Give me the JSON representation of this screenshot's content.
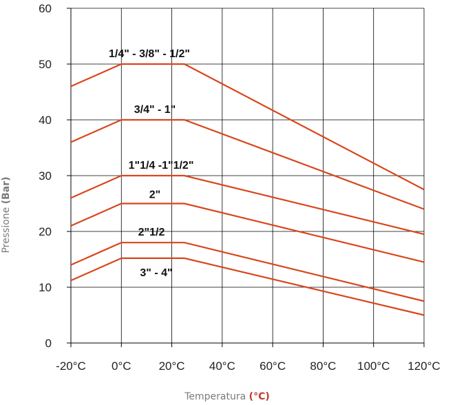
{
  "chart_data": {
    "type": "line",
    "xlabel": "Temperatura",
    "xlabel_unit": "(°C)",
    "ylabel": "Pressione",
    "ylabel_unit": "(Bar)",
    "xlim": [
      -20,
      120
    ],
    "ylim": [
      0,
      60
    ],
    "x_ticks": [
      -20,
      0,
      20,
      40,
      60,
      80,
      100,
      120
    ],
    "x_tick_labels": [
      "-20°C",
      "0°C",
      "20°C",
      "40°C",
      "60°C",
      "80°C",
      "100°C",
      "120°C"
    ],
    "y_ticks": [
      0,
      10,
      20,
      30,
      40,
      50,
      60
    ],
    "y_tick_labels": [
      "0",
      "10",
      "20",
      "30",
      "40",
      "50",
      "60"
    ],
    "grid": true,
    "series": [
      {
        "name": "1/4\" - 3/8\" - 1/2\"",
        "x": [
          -20,
          0,
          25,
          120
        ],
        "values": [
          46,
          50,
          50,
          27.5
        ]
      },
      {
        "name": "3/4\" - 1\"",
        "x": [
          -20,
          0,
          25,
          120
        ],
        "values": [
          36,
          40,
          40,
          24
        ]
      },
      {
        "name": "1\"1/4 -1\"1/2\"",
        "x": [
          -20,
          0,
          25,
          120
        ],
        "values": [
          26,
          30,
          30,
          19.5
        ]
      },
      {
        "name": "2\"",
        "x": [
          -20,
          0,
          25,
          120
        ],
        "values": [
          21,
          25,
          25,
          14.5
        ]
      },
      {
        "name": "2\"1/2",
        "x": [
          -20,
          0,
          25,
          120
        ],
        "values": [
          14,
          18,
          18,
          7.5
        ]
      },
      {
        "name": "3\" - 4\"",
        "x": [
          -20,
          0,
          25,
          120
        ],
        "values": [
          11.2,
          15.2,
          15.2,
          5
        ]
      }
    ],
    "colors": {
      "line": "#d8461b",
      "grid": "#000000",
      "text": "#111111",
      "axis_title": "#7a7a7a"
    }
  }
}
